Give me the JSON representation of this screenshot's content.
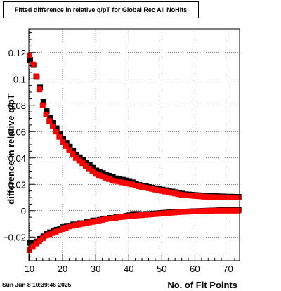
{
  "title": "Fitted difference in relative q/pT for Global Rec All NoHits",
  "timestamp": "Sun Jun  8 10:39:46 2025",
  "chart_data": {
    "type": "scatter",
    "title": "Fitted difference in relative q/pT for Global Rec All NoHits",
    "xlabel": "No. of Fit Points",
    "ylabel": "difference in relative q/pT",
    "xlim": [
      9.8,
      73.5
    ],
    "ylim": [
      -0.038,
      0.138
    ],
    "grid": true,
    "xticks": [
      10,
      20,
      30,
      40,
      50,
      60,
      70
    ],
    "yticks": [
      -0.02,
      0,
      0.02,
      0.04,
      0.06,
      0.08,
      0.1,
      0.12
    ],
    "xtick_labels": [
      "10",
      "20",
      "30",
      "40",
      "50",
      "60",
      "70"
    ],
    "ytick_labels": [
      "−0.02",
      "0",
      "0.02",
      "0.04",
      "0.06",
      "0.08",
      "0.1",
      "0.12"
    ],
    "series": [
      {
        "color": "#000000",
        "marker": "square",
        "x": [
          10,
          11,
          12,
          13,
          14,
          15,
          16,
          17,
          18,
          19,
          20,
          21,
          22,
          23,
          24,
          25,
          26,
          27,
          28,
          29,
          30,
          31,
          32,
          33,
          34,
          35,
          36,
          37,
          38,
          39,
          40,
          41,
          42,
          43,
          44,
          45,
          46,
          47,
          48,
          49,
          50,
          51,
          52,
          53,
          54,
          55,
          56,
          57,
          58,
          59,
          60,
          61,
          62,
          63,
          64,
          65,
          66,
          67,
          68,
          69,
          70,
          71,
          72,
          73
        ],
        "upper": [
          0.114,
          0.11,
          0.101,
          0.093,
          0.082,
          0.075,
          0.07,
          0.066,
          0.062,
          0.058,
          0.054,
          0.051,
          0.048,
          0.045,
          0.042,
          0.04,
          0.038,
          0.036,
          0.034,
          0.032,
          0.03,
          0.029,
          0.028,
          0.027,
          0.026,
          0.025,
          0.024,
          0.0235,
          0.023,
          0.0225,
          0.022,
          0.021,
          0.02,
          0.019,
          0.0185,
          0.018,
          0.0175,
          0.017,
          0.0165,
          0.016,
          0.0155,
          0.015,
          0.0145,
          0.014,
          0.0135,
          0.013,
          0.0125,
          0.012,
          0.0118,
          0.0116,
          0.0114,
          0.0112,
          0.011,
          0.0108,
          0.0107,
          0.0106,
          0.0105,
          0.0104,
          0.0103,
          0.0102,
          0.0101,
          0.0101,
          0.01,
          0.01
        ],
        "lower": [
          -0.025,
          -0.025,
          -0.024,
          -0.022,
          -0.02,
          -0.018,
          -0.017,
          -0.016,
          -0.015,
          -0.014,
          -0.013,
          -0.012,
          -0.012,
          -0.011,
          -0.011,
          -0.01,
          -0.01,
          -0.009,
          -0.009,
          -0.008,
          -0.008,
          -0.0075,
          -0.007,
          -0.0065,
          -0.006,
          -0.006,
          -0.0055,
          -0.005,
          -0.005,
          -0.0045,
          -0.004,
          -0.003,
          -0.003,
          -0.003,
          -0.0035,
          -0.003,
          -0.003,
          -0.0028,
          -0.0026,
          -0.0024,
          -0.0022,
          -0.002,
          -0.0018,
          -0.0016,
          -0.0015,
          -0.0014,
          -0.0013,
          -0.0012,
          -0.0011,
          -0.001,
          -0.0009,
          -0.0008,
          -0.0007,
          -0.0006,
          -0.0005,
          -0.0004,
          -0.0003,
          -0.0002,
          -0.0001,
          0.0,
          0.0,
          0.0,
          0.0,
          0.0
        ]
      },
      {
        "color": "#ff0000",
        "marker": "square",
        "x": [
          10,
          11,
          12,
          13,
          14,
          15,
          16,
          17,
          18,
          19,
          20,
          21,
          22,
          23,
          24,
          25,
          26,
          27,
          28,
          29,
          30,
          31,
          32,
          33,
          34,
          35,
          36,
          37,
          38,
          39,
          40,
          41,
          42,
          43,
          44,
          45,
          46,
          47,
          48,
          49,
          50,
          51,
          52,
          53,
          54,
          55,
          56,
          57,
          58,
          59,
          60,
          61,
          62,
          63,
          64,
          65,
          66,
          67,
          68,
          69,
          70,
          71,
          72,
          73
        ],
        "upper": [
          0.118,
          0.111,
          0.102,
          0.092,
          0.08,
          0.073,
          0.068,
          0.064,
          0.06,
          0.056,
          0.052,
          0.049,
          0.046,
          0.043,
          0.04,
          0.038,
          0.036,
          0.034,
          0.032,
          0.03,
          0.028,
          0.027,
          0.026,
          0.025,
          0.024,
          0.023,
          0.0225,
          0.022,
          0.0215,
          0.021,
          0.0205,
          0.02,
          0.019,
          0.0185,
          0.018,
          0.0175,
          0.017,
          0.0165,
          0.016,
          0.0155,
          0.015,
          0.0145,
          0.014,
          0.0135,
          0.013,
          0.0125,
          0.012,
          0.0118,
          0.0116,
          0.0114,
          0.0112,
          0.011,
          0.0108,
          0.0106,
          0.0105,
          0.0104,
          0.0103,
          0.0102,
          0.0101,
          0.0101,
          0.01,
          0.01,
          0.01,
          0.01
        ],
        "lower": [
          -0.03,
          -0.027,
          -0.025,
          -0.023,
          -0.021,
          -0.019,
          -0.018,
          -0.017,
          -0.016,
          -0.015,
          -0.014,
          -0.013,
          -0.012,
          -0.0115,
          -0.011,
          -0.0105,
          -0.01,
          -0.0095,
          -0.009,
          -0.0085,
          -0.008,
          -0.0075,
          -0.007,
          -0.0065,
          -0.006,
          -0.0058,
          -0.0055,
          -0.005,
          -0.0048,
          -0.0045,
          -0.0042,
          -0.004,
          -0.0038,
          -0.0036,
          -0.0034,
          -0.0032,
          -0.003,
          -0.0028,
          -0.0026,
          -0.0024,
          -0.0022,
          -0.002,
          -0.0018,
          -0.0016,
          -0.0014,
          -0.0012,
          -0.001,
          -0.0009,
          -0.0008,
          -0.0007,
          -0.0006,
          -0.0005,
          -0.0004,
          -0.0003,
          -0.0002,
          -0.0001,
          0.0,
          0.0,
          0.0,
          0.0,
          0.0,
          0.0,
          0.0,
          0.0
        ]
      }
    ]
  }
}
